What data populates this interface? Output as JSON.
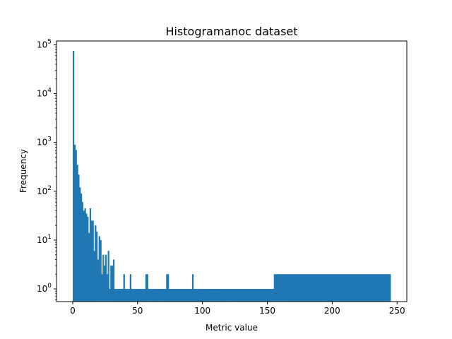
{
  "chart_data": {
    "type": "bar",
    "title": "Histogramanoc dataset",
    "xlabel": "Metric value",
    "ylabel": "Frequency",
    "yscale": "log",
    "xlim": [
      -12.5,
      257.5
    ],
    "ylim": [
      0.55,
      120000
    ],
    "xticks": [
      0,
      50,
      100,
      150,
      200,
      250
    ],
    "yticks": [
      {
        "value": 1,
        "base": "10",
        "exp": "0"
      },
      {
        "value": 10,
        "base": "10",
        "exp": "1"
      },
      {
        "value": 100,
        "base": "10",
        "exp": "2"
      },
      {
        "value": 1000,
        "base": "10",
        "exp": "3"
      },
      {
        "value": 10000,
        "base": "10",
        "exp": "4"
      },
      {
        "value": 100000,
        "base": "10",
        "exp": "5"
      }
    ],
    "grid": false,
    "color": "#1f77b4",
    "bin_width": 1,
    "bins": [
      [
        0,
        75000
      ],
      [
        1,
        900
      ],
      [
        2,
        700
      ],
      [
        3,
        350
      ],
      [
        4,
        220
      ],
      [
        5,
        120
      ],
      [
        6,
        90
      ],
      [
        7,
        60
      ],
      [
        8,
        40
      ],
      [
        9,
        45
      ],
      [
        10,
        35
      ],
      [
        11,
        30
      ],
      [
        12,
        14
      ],
      [
        13,
        45
      ],
      [
        14,
        25
      ],
      [
        15,
        25
      ],
      [
        16,
        6
      ],
      [
        17,
        20
      ],
      [
        18,
        15
      ],
      [
        19,
        4
      ],
      [
        20,
        12
      ],
      [
        21,
        10
      ],
      [
        22,
        2
      ],
      [
        23,
        5
      ],
      [
        24,
        3
      ],
      [
        25,
        5
      ],
      [
        26,
        2
      ],
      [
        27,
        6
      ],
      [
        28,
        1
      ],
      [
        29,
        3
      ],
      [
        30,
        3
      ],
      [
        31,
        4
      ],
      [
        32,
        1
      ],
      [
        33,
        1
      ],
      [
        34,
        1
      ],
      [
        35,
        1
      ],
      [
        36,
        1
      ],
      [
        37,
        1
      ],
      [
        38,
        1
      ],
      [
        39,
        2
      ],
      [
        40,
        1
      ],
      [
        41,
        1
      ],
      [
        42,
        1
      ],
      [
        43,
        1
      ],
      [
        44,
        2
      ],
      [
        45,
        1
      ],
      [
        46,
        1
      ],
      [
        47,
        1
      ],
      [
        48,
        1
      ],
      [
        49,
        1
      ],
      [
        50,
        1
      ],
      [
        51,
        1
      ],
      [
        52,
        1
      ],
      [
        53,
        1
      ],
      [
        54,
        1
      ],
      [
        55,
        1
      ],
      [
        56,
        2
      ],
      [
        57,
        2
      ],
      [
        58,
        1
      ],
      [
        59,
        1
      ],
      [
        60,
        1
      ],
      [
        61,
        1
      ],
      [
        62,
        1
      ],
      [
        63,
        1
      ],
      [
        64,
        1
      ],
      [
        65,
        1
      ],
      [
        66,
        1
      ],
      [
        67,
        1
      ],
      [
        68,
        1
      ],
      [
        69,
        1
      ],
      [
        70,
        1
      ],
      [
        71,
        1
      ],
      [
        72,
        2
      ],
      [
        73,
        2
      ],
      [
        74,
        1
      ],
      [
        75,
        1
      ],
      [
        76,
        1
      ],
      [
        77,
        1
      ],
      [
        78,
        1
      ],
      [
        79,
        1
      ],
      [
        80,
        1
      ],
      [
        81,
        1
      ],
      [
        82,
        1
      ],
      [
        83,
        1
      ],
      [
        84,
        1
      ],
      [
        85,
        1
      ],
      [
        86,
        1
      ],
      [
        87,
        1
      ],
      [
        88,
        1
      ],
      [
        89,
        1
      ],
      [
        90,
        1
      ],
      [
        91,
        1
      ],
      [
        92,
        2
      ],
      [
        93,
        1
      ],
      [
        94,
        1
      ],
      [
        95,
        1
      ],
      [
        96,
        1
      ],
      [
        97,
        1
      ],
      [
        98,
        1
      ],
      [
        99,
        1
      ],
      [
        100,
        1
      ],
      [
        101,
        1
      ],
      [
        102,
        1
      ],
      [
        103,
        1
      ],
      [
        104,
        1
      ],
      [
        105,
        1
      ],
      [
        106,
        1
      ],
      [
        107,
        1
      ],
      [
        108,
        1
      ],
      [
        109,
        1
      ],
      [
        110,
        1
      ],
      [
        111,
        1
      ],
      [
        112,
        1
      ],
      [
        113,
        1
      ],
      [
        114,
        1
      ],
      [
        115,
        1
      ],
      [
        116,
        1
      ],
      [
        117,
        1
      ],
      [
        118,
        1
      ],
      [
        119,
        1
      ],
      [
        120,
        1
      ],
      [
        121,
        1
      ],
      [
        122,
        1
      ],
      [
        123,
        1
      ],
      [
        124,
        1
      ],
      [
        125,
        1
      ],
      [
        126,
        1
      ],
      [
        127,
        1
      ],
      [
        128,
        1
      ],
      [
        129,
        1
      ],
      [
        130,
        1
      ],
      [
        131,
        1
      ],
      [
        132,
        1
      ],
      [
        133,
        1
      ],
      [
        134,
        1
      ],
      [
        135,
        1
      ],
      [
        136,
        1
      ],
      [
        137,
        1
      ],
      [
        138,
        1
      ],
      [
        139,
        1
      ],
      [
        140,
        1
      ],
      [
        141,
        1
      ],
      [
        142,
        1
      ],
      [
        143,
        1
      ],
      [
        144,
        1
      ],
      [
        145,
        1
      ],
      [
        146,
        1
      ],
      [
        147,
        1
      ],
      [
        148,
        1
      ],
      [
        149,
        1
      ],
      [
        150,
        1
      ],
      [
        151,
        1
      ],
      [
        152,
        1
      ],
      [
        153,
        1
      ],
      [
        154,
        1
      ],
      [
        155,
        2
      ],
      [
        156,
        2
      ],
      [
        157,
        2
      ],
      [
        158,
        2
      ],
      [
        159,
        2
      ],
      [
        160,
        2
      ],
      [
        161,
        2
      ],
      [
        162,
        2
      ],
      [
        163,
        2
      ],
      [
        164,
        2
      ],
      [
        165,
        2
      ],
      [
        166,
        2
      ],
      [
        167,
        2
      ],
      [
        168,
        2
      ],
      [
        169,
        2
      ],
      [
        170,
        2
      ],
      [
        171,
        2
      ],
      [
        172,
        2
      ],
      [
        173,
        2
      ],
      [
        174,
        2
      ],
      [
        175,
        2
      ],
      [
        176,
        2
      ],
      [
        177,
        2
      ],
      [
        178,
        2
      ],
      [
        179,
        2
      ],
      [
        180,
        2
      ],
      [
        181,
        2
      ],
      [
        182,
        2
      ],
      [
        183,
        2
      ],
      [
        184,
        2
      ],
      [
        185,
        2
      ],
      [
        186,
        2
      ],
      [
        187,
        2
      ],
      [
        188,
        2
      ],
      [
        189,
        2
      ],
      [
        190,
        2
      ],
      [
        191,
        2
      ],
      [
        192,
        2
      ],
      [
        193,
        2
      ],
      [
        194,
        2
      ],
      [
        195,
        2
      ],
      [
        196,
        2
      ],
      [
        197,
        2
      ],
      [
        198,
        2
      ],
      [
        199,
        2
      ],
      [
        200,
        2
      ],
      [
        201,
        2
      ],
      [
        202,
        2
      ],
      [
        203,
        2
      ],
      [
        204,
        2
      ],
      [
        205,
        2
      ],
      [
        206,
        2
      ],
      [
        207,
        2
      ],
      [
        208,
        2
      ],
      [
        209,
        2
      ],
      [
        210,
        2
      ],
      [
        211,
        2
      ],
      [
        212,
        2
      ],
      [
        213,
        2
      ],
      [
        214,
        2
      ],
      [
        215,
        2
      ],
      [
        216,
        2
      ],
      [
        217,
        2
      ],
      [
        218,
        2
      ],
      [
        219,
        2
      ],
      [
        220,
        2
      ],
      [
        221,
        2
      ],
      [
        222,
        2
      ],
      [
        223,
        2
      ],
      [
        224,
        2
      ],
      [
        225,
        2
      ],
      [
        226,
        2
      ],
      [
        227,
        2
      ],
      [
        228,
        2
      ],
      [
        229,
        2
      ],
      [
        230,
        2
      ],
      [
        231,
        2
      ],
      [
        232,
        2
      ],
      [
        233,
        2
      ],
      [
        234,
        2
      ],
      [
        235,
        2
      ],
      [
        236,
        2
      ],
      [
        237,
        2
      ],
      [
        238,
        2
      ],
      [
        239,
        2
      ],
      [
        240,
        2
      ],
      [
        241,
        2
      ],
      [
        242,
        2
      ],
      [
        243,
        2
      ],
      [
        244,
        2
      ]
    ]
  }
}
